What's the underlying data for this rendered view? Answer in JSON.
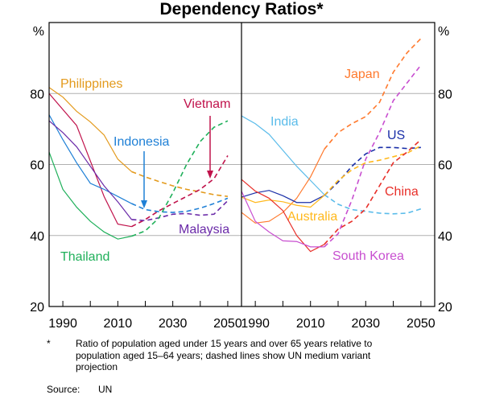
{
  "title": "Dependency Ratios*",
  "footnote_mark": "*",
  "footnote": "Ratio of population aged under 15 years and over 65 years relative to population aged 15–64 years; dashed lines show UN medium variant projection",
  "source_label": "Source:",
  "source": "UN",
  "chart_data": {
    "type": "line",
    "unit_label": "%",
    "ylim": [
      20,
      100
    ],
    "yticks": [
      20,
      40,
      60,
      80
    ],
    "xlim": [
      1985,
      2055
    ],
    "xticks": [
      1990,
      2010,
      2030,
      2050
    ],
    "x": [
      1985,
      1990,
      1995,
      2000,
      2005,
      2010,
      2015,
      2020,
      2025,
      2030,
      2035,
      2040,
      2045,
      2050
    ],
    "projection_start": 2015,
    "grid": true,
    "panels": [
      {
        "name": "left",
        "series": [
          {
            "name": "Philippines",
            "color": "#e39a1c",
            "values": [
              81.7,
              79,
              75,
              72,
              68.3,
              61.5,
              58,
              56.5,
              55.2,
              54,
              53,
              52.3,
              51.5,
              51
            ]
          },
          {
            "name": "Vietnam",
            "color": "#c0124b",
            "values": [
              80,
              75.5,
              71,
              61,
              51,
              43.2,
              42.5,
              44.5,
              47,
              49,
              51,
              53,
              56,
              62.5
            ]
          },
          {
            "name": "Indonesia",
            "color": "#1f80d6",
            "values": [
              74,
              67,
              60.5,
              54.7,
              53,
              51,
              49,
              47.3,
              46.7,
              46.5,
              46.8,
              47.7,
              49,
              50.5
            ]
          },
          {
            "name": "Malaysia",
            "color": "#6a2aa8",
            "values": [
              72.3,
              69,
              65,
              59.5,
              54,
              49.5,
              44.5,
              44.2,
              45,
              46,
              46.2,
              45.7,
              46,
              49.8
            ]
          },
          {
            "name": "Thailand",
            "color": "#1fb05a",
            "values": [
              63.5,
              53,
              48,
              44,
              41,
              39,
              39.8,
              41.3,
              45,
              52,
              60,
              66.5,
              70.5,
              72.3
            ]
          }
        ]
      },
      {
        "name": "right",
        "series": [
          {
            "name": "India",
            "color": "#5bbcea",
            "values": [
              73.7,
              71.5,
              68.5,
              64,
              59.5,
              55.5,
              51.5,
              48.8,
              47.3,
              46.8,
              46.3,
              46.1,
              46.3,
              47.5
            ]
          },
          {
            "name": "Japan",
            "color": "#ff7a2e",
            "values": [
              46.5,
              43.5,
              44,
              46.5,
              50.5,
              56.5,
              64.3,
              69,
              71.5,
              73.5,
              77.5,
              86,
              91.5,
              95.5
            ]
          },
          {
            "name": "US",
            "color": "#1a2fa8",
            "values": [
              50.8,
              52,
              52.7,
              51.2,
              49.3,
              49.3,
              51.3,
              55,
              59.5,
              63,
              64.8,
              64.8,
              64.5,
              64.8
            ]
          },
          {
            "name": "Australia",
            "color": "#ffb81c",
            "values": [
              50.8,
              49.3,
              50,
              49.5,
              48.5,
              48,
              51.3,
              55.5,
              58.5,
              60.5,
              61.2,
              62.2,
              63.2,
              65.3
            ]
          },
          {
            "name": "China",
            "color": "#e8302a",
            "values": [
              55.8,
              52.5,
              50.5,
              47,
              40,
              35.5,
              37.5,
              41.8,
              44,
              47.5,
              54,
              60.5,
              63.5,
              67
            ]
          },
          {
            "name": "South Korea",
            "color": "#c84fd0",
            "values": [
              52.5,
              44,
              41,
              38.5,
              38.3,
              36.8,
              36.8,
              40.5,
              50,
              61.5,
              69,
              78,
              83,
              88
            ]
          }
        ]
      }
    ]
  }
}
